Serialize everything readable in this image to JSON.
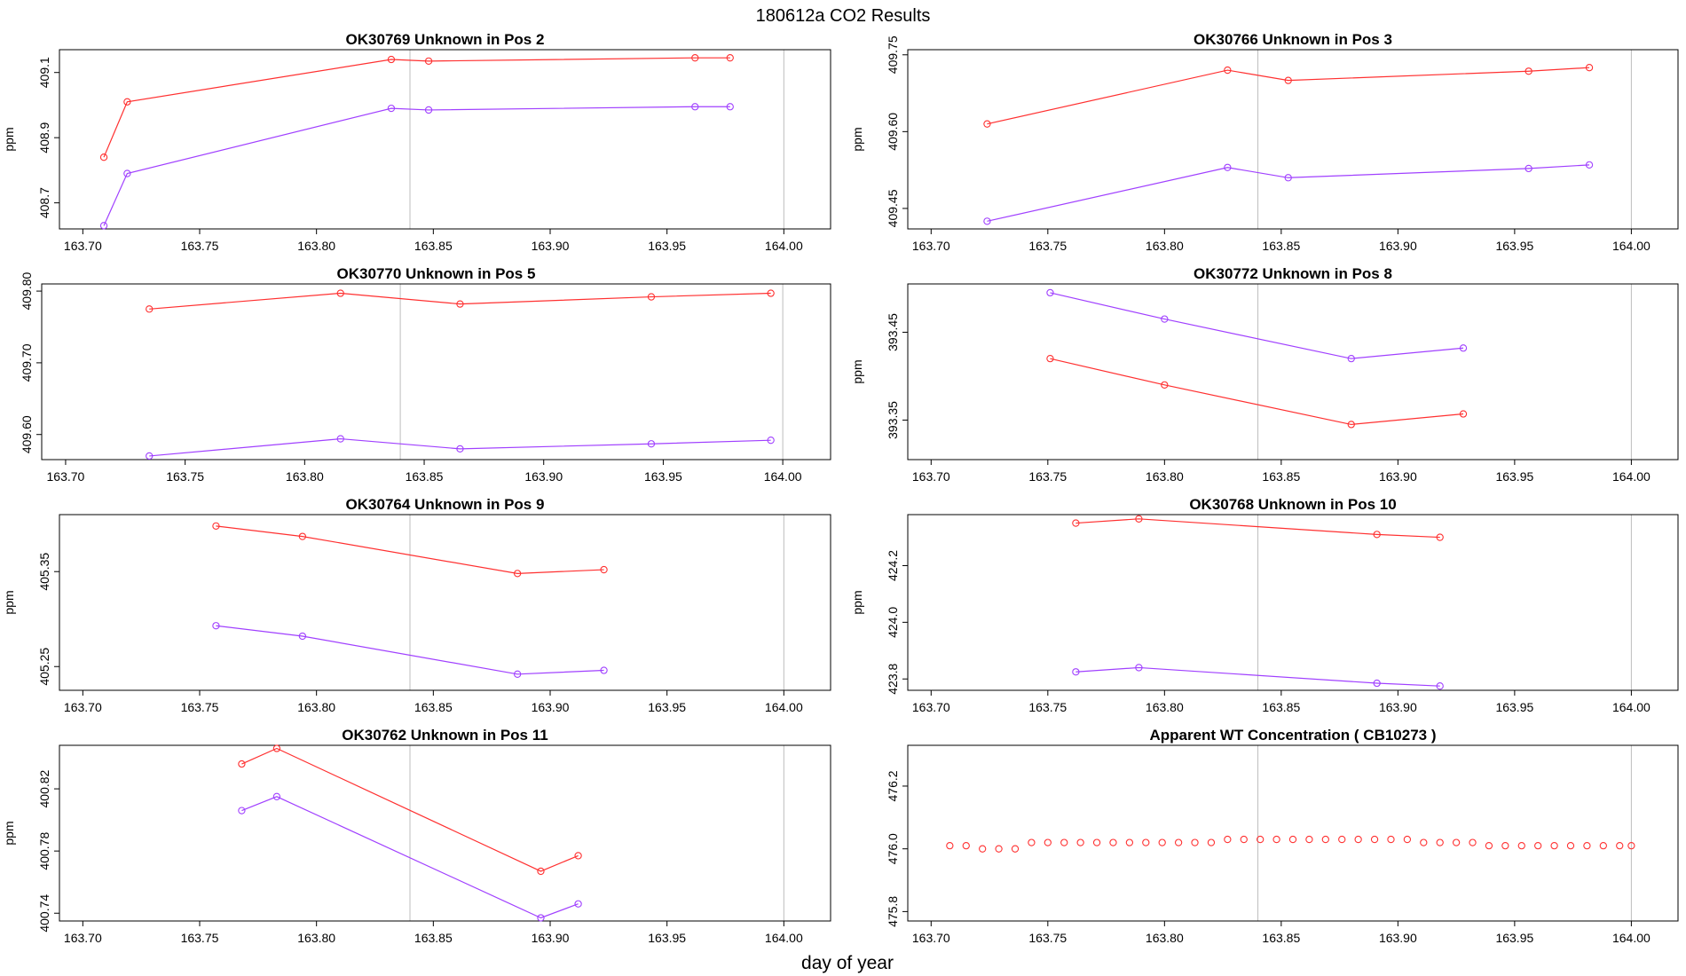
{
  "figure": {
    "title": "180612a  CO2 Results",
    "xlabel": "day of year"
  },
  "colors": {
    "red": "#ff3030",
    "purple": "#a040ff",
    "vline": "#bdbdbd"
  },
  "chart_data": [
    {
      "type": "line",
      "title": "OK30769    Unknown in Pos 2",
      "ylabel": "ppm",
      "xlim": [
        163.69,
        164.02
      ],
      "ylim": [
        408.62,
        409.17
      ],
      "x_ticks": [
        "163.70",
        "163.75",
        "163.80",
        "163.85",
        "163.90",
        "163.95",
        "164.00"
      ],
      "y_ticks": [
        "408.7",
        "408.9",
        "409.1"
      ],
      "vlines": [
        163.84,
        164.0
      ],
      "series": [
        {
          "color": "red",
          "x": [
            163.709,
            163.719,
            163.832,
            163.848,
            163.962,
            163.977
          ],
          "y": [
            408.84,
            409.01,
            409.14,
            409.135,
            409.145,
            409.145
          ]
        },
        {
          "color": "purple",
          "x": [
            163.709,
            163.719,
            163.832,
            163.848,
            163.962,
            163.977
          ],
          "y": [
            408.63,
            408.79,
            408.99,
            408.985,
            408.995,
            408.995
          ]
        }
      ]
    },
    {
      "type": "line",
      "title": "OK30766    Unknown in Pos 3",
      "ylabel": "ppm",
      "xlim": [
        163.69,
        164.02
      ],
      "ylim": [
        409.41,
        409.76
      ],
      "x_ticks": [
        "163.70",
        "163.75",
        "163.80",
        "163.85",
        "163.90",
        "163.95",
        "164.00"
      ],
      "y_ticks": [
        "409.45",
        "409.60",
        "409.75"
      ],
      "vlines": [
        163.84,
        164.0
      ],
      "series": [
        {
          "color": "red",
          "x": [
            163.724,
            163.827,
            163.853,
            163.956,
            163.982
          ],
          "y": [
            409.615,
            409.72,
            409.7,
            409.718,
            409.725
          ]
        },
        {
          "color": "purple",
          "x": [
            163.724,
            163.827,
            163.853,
            163.956,
            163.982
          ],
          "y": [
            409.425,
            409.53,
            409.51,
            409.528,
            409.535
          ]
        }
      ]
    },
    {
      "type": "line",
      "title": "OK30770    Unknown in Pos 5",
      "ylabel": "ppm",
      "xlim": [
        163.69,
        164.02
      ],
      "ylim": [
        409.565,
        409.81
      ],
      "x_ticks": [
        "163.70",
        "163.75",
        "163.80",
        "163.85",
        "163.90",
        "163.95",
        "164.00"
      ],
      "y_ticks": [
        "409.60",
        "409.70",
        "409.80"
      ],
      "vlines": [
        163.84,
        164.0
      ],
      "series": [
        {
          "color": "red",
          "x": [
            163.735,
            163.815,
            163.865,
            163.945,
            163.995
          ],
          "y": [
            409.775,
            409.797,
            409.782,
            409.792,
            409.797
          ]
        },
        {
          "color": "purple",
          "x": [
            163.735,
            163.815,
            163.865,
            163.945,
            163.995
          ],
          "y": [
            409.57,
            409.594,
            409.58,
            409.587,
            409.592
          ]
        }
      ]
    },
    {
      "type": "line",
      "title": "OK30772    Unknown in Pos 8",
      "ylabel": "ppm",
      "xlim": [
        163.69,
        164.02
      ],
      "ylim": [
        393.305,
        393.505
      ],
      "x_ticks": [
        "163.70",
        "163.75",
        "163.80",
        "163.85",
        "163.90",
        "163.95",
        "164.00"
      ],
      "y_ticks": [
        "393.35",
        "393.45"
      ],
      "vlines": [
        163.84,
        164.0
      ],
      "series": [
        {
          "color": "purple",
          "x": [
            163.751,
            163.8,
            163.88,
            163.928
          ],
          "y": [
            393.495,
            393.465,
            393.42,
            393.432
          ]
        },
        {
          "color": "red",
          "x": [
            163.751,
            163.8,
            163.88,
            163.928
          ],
          "y": [
            393.42,
            393.39,
            393.345,
            393.357
          ]
        }
      ]
    },
    {
      "type": "line",
      "title": "OK30764    Unknown in Pos 9",
      "ylabel": "ppm",
      "xlim": [
        163.69,
        164.02
      ],
      "ylim": [
        405.225,
        405.41
      ],
      "x_ticks": [
        "163.70",
        "163.75",
        "163.80",
        "163.85",
        "163.90",
        "163.95",
        "164.00"
      ],
      "y_ticks": [
        "405.25",
        "405.35"
      ],
      "vlines": [
        163.84,
        164.0
      ],
      "series": [
        {
          "color": "red",
          "x": [
            163.757,
            163.794,
            163.886,
            163.923
          ],
          "y": [
            405.398,
            405.387,
            405.348,
            405.352
          ]
        },
        {
          "color": "purple",
          "x": [
            163.757,
            163.794,
            163.886,
            163.923
          ],
          "y": [
            405.293,
            405.282,
            405.242,
            405.246
          ]
        }
      ]
    },
    {
      "type": "line",
      "title": "OK30768    Unknown in Pos 10",
      "ylabel": "ppm",
      "xlim": [
        163.69,
        164.02
      ],
      "ylim": [
        423.76,
        424.38
      ],
      "x_ticks": [
        "163.70",
        "163.75",
        "163.80",
        "163.85",
        "163.90",
        "163.95",
        "164.00"
      ],
      "y_ticks": [
        "423.8",
        "424.0",
        "424.2"
      ],
      "vlines": [
        163.84,
        164.0
      ],
      "series": [
        {
          "color": "red",
          "x": [
            163.762,
            163.789,
            163.891,
            163.918
          ],
          "y": [
            424.35,
            424.365,
            424.31,
            424.3
          ]
        },
        {
          "color": "purple",
          "x": [
            163.762,
            163.789,
            163.891,
            163.918
          ],
          "y": [
            423.825,
            423.84,
            423.785,
            423.775
          ]
        }
      ]
    },
    {
      "type": "line",
      "title": "OK30762    Unknown in Pos 11",
      "ylabel": "ppm",
      "xlim": [
        163.69,
        164.02
      ],
      "ylim": [
        400.735,
        400.848
      ],
      "x_ticks": [
        "163.70",
        "163.75",
        "163.80",
        "163.85",
        "163.90",
        "163.95",
        "164.00"
      ],
      "y_ticks": [
        "400.74",
        "400.78",
        "400.82"
      ],
      "vlines": [
        163.84,
        164.0
      ],
      "series": [
        {
          "color": "red",
          "x": [
            163.768,
            163.783,
            163.896,
            163.912
          ],
          "y": [
            400.836,
            400.846,
            400.767,
            400.777
          ]
        },
        {
          "color": "purple",
          "x": [
            163.768,
            163.783,
            163.896,
            163.912
          ],
          "y": [
            400.806,
            400.815,
            400.737,
            400.746
          ]
        }
      ]
    },
    {
      "type": "scatter",
      "title": "Apparent WT Concentration ( CB10273 )",
      "ylabel": "",
      "xlim": [
        163.69,
        164.02
      ],
      "ylim": [
        475.77,
        476.33
      ],
      "x_ticks": [
        "163.70",
        "163.75",
        "163.80",
        "163.85",
        "163.90",
        "163.95",
        "164.00"
      ],
      "y_ticks": [
        "475.8",
        "476.0",
        "476.2"
      ],
      "vlines": [
        163.84,
        164.0
      ],
      "series": [
        {
          "color": "red",
          "x": [
            163.708,
            163.715,
            163.722,
            163.729,
            163.736,
            163.743,
            163.75,
            163.757,
            163.764,
            163.771,
            163.778,
            163.785,
            163.792,
            163.799,
            163.806,
            163.813,
            163.82,
            163.827,
            163.834,
            163.841,
            163.848,
            163.855,
            163.862,
            163.869,
            163.876,
            163.883,
            163.89,
            163.897,
            163.904,
            163.911,
            163.918,
            163.925,
            163.932,
            163.939,
            163.946,
            163.953,
            163.96,
            163.967,
            163.974,
            163.981,
            163.988,
            163.995,
            164.0
          ],
          "y": [
            476.01,
            476.01,
            476.0,
            476.0,
            476.0,
            476.02,
            476.02,
            476.02,
            476.02,
            476.02,
            476.02,
            476.02,
            476.02,
            476.02,
            476.02,
            476.02,
            476.02,
            476.03,
            476.03,
            476.03,
            476.03,
            476.03,
            476.03,
            476.03,
            476.03,
            476.03,
            476.03,
            476.03,
            476.03,
            476.02,
            476.02,
            476.02,
            476.02,
            476.01,
            476.01,
            476.01,
            476.01,
            476.01,
            476.01,
            476.01,
            476.01,
            476.01,
            476.01
          ]
        }
      ]
    }
  ]
}
